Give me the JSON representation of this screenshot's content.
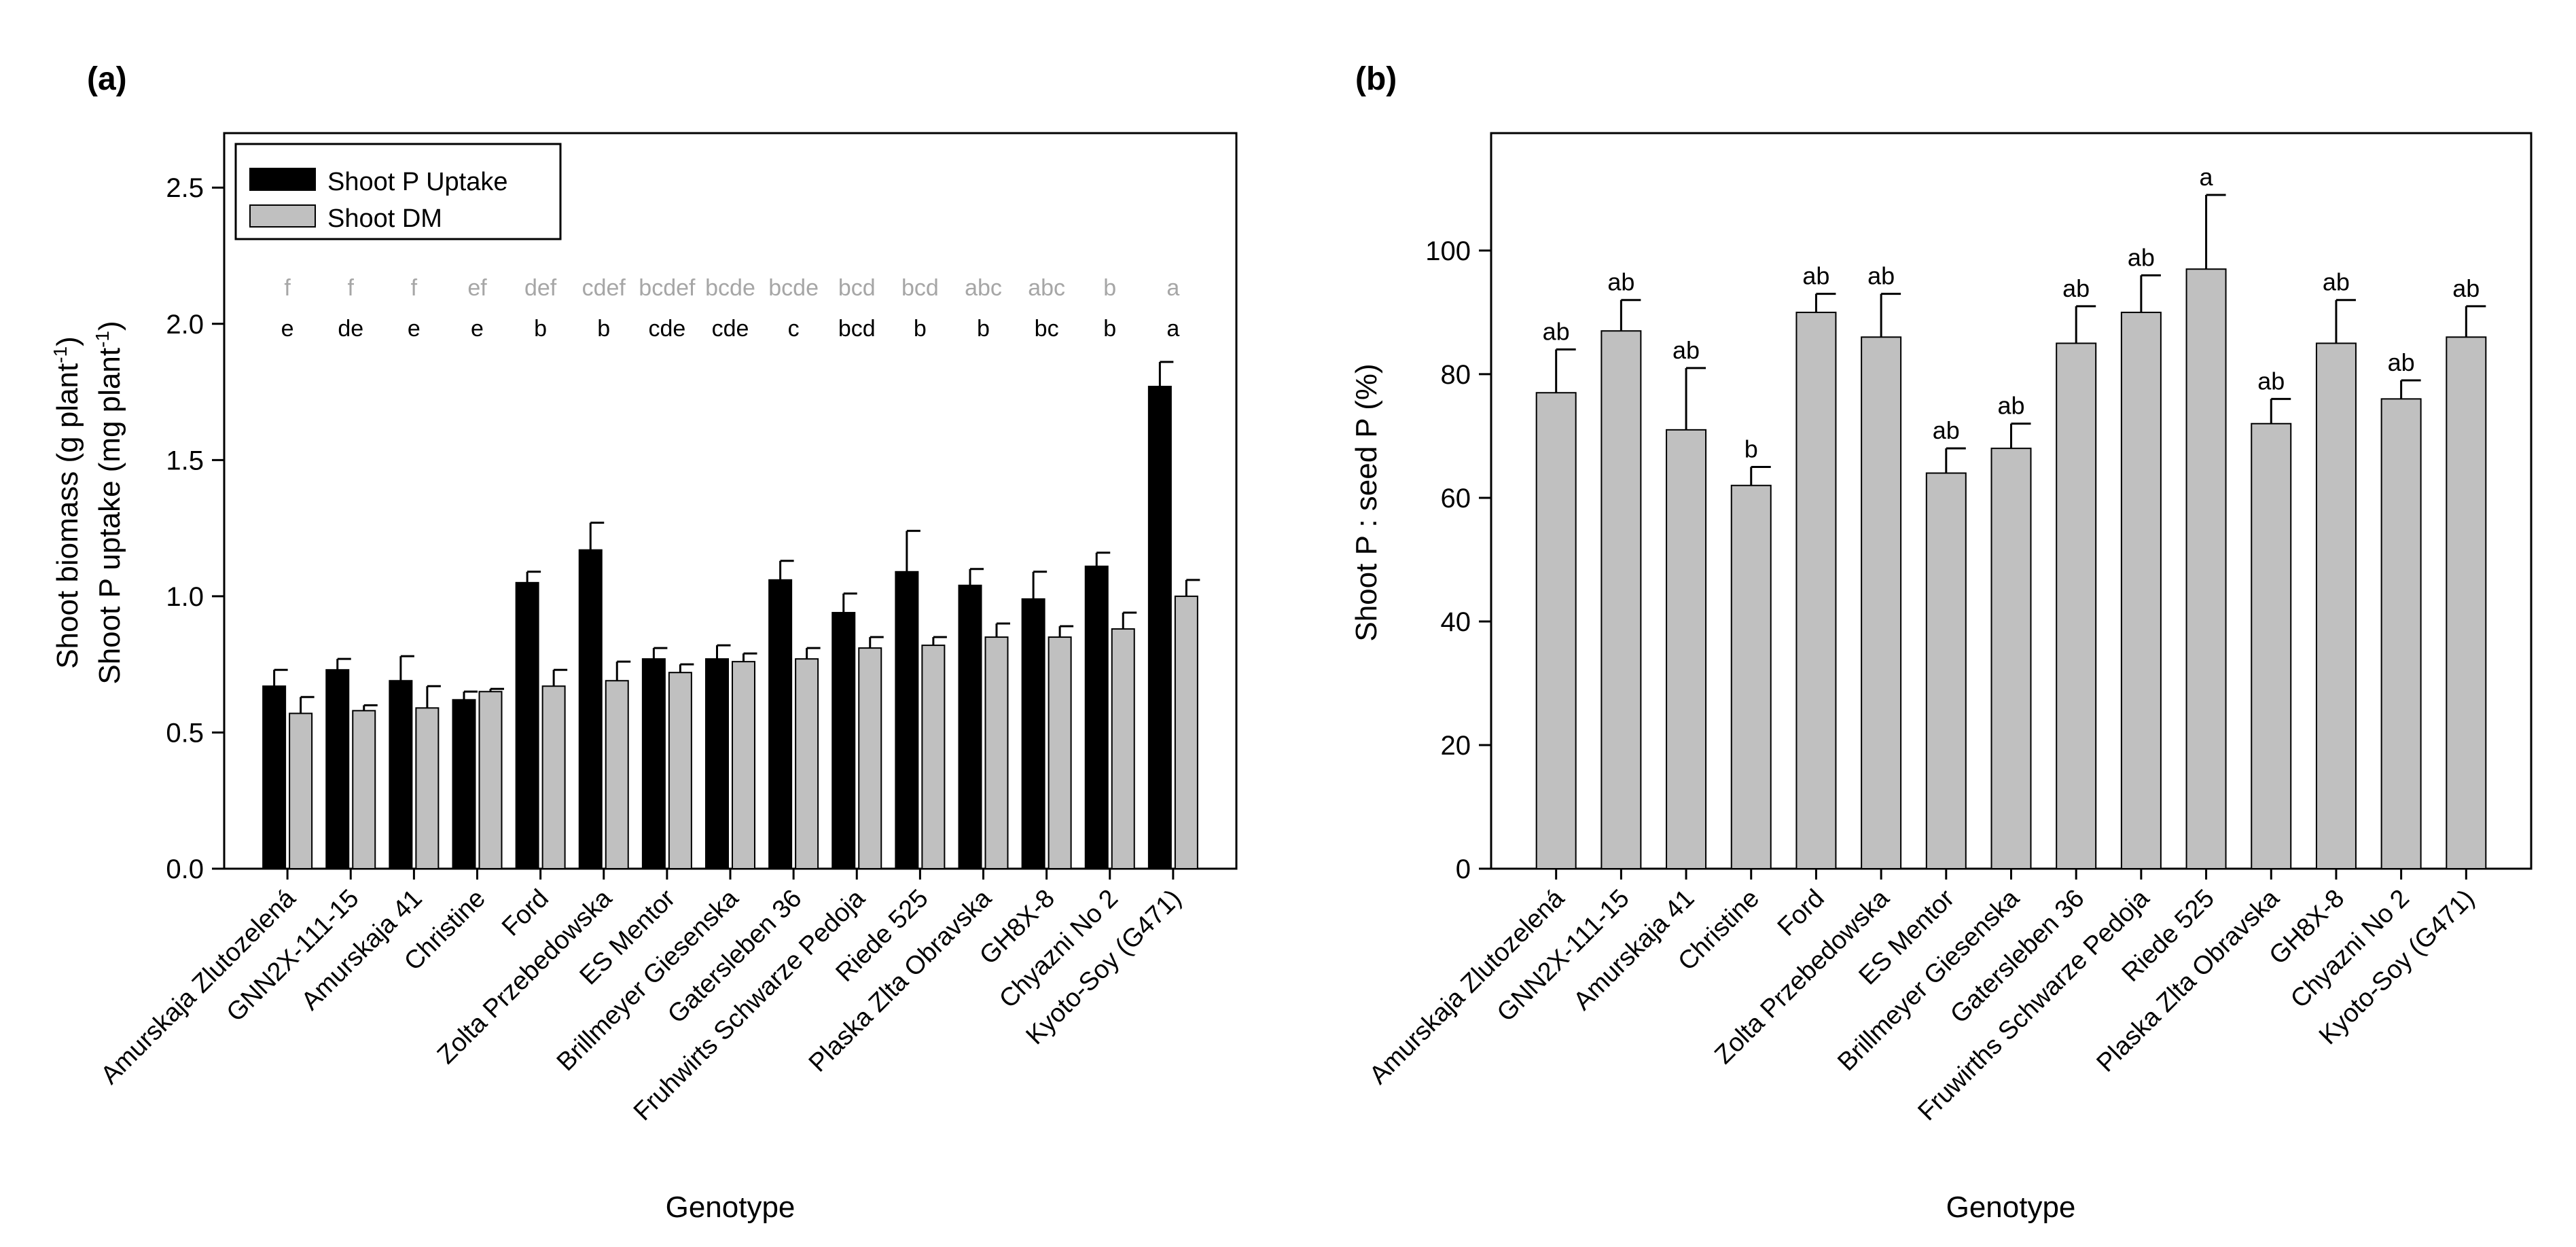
{
  "figure": {
    "panel_a_label": "(a)",
    "panel_b_label": "(b)"
  },
  "colors": {
    "uptake_fill": "#000000",
    "dm_fill": "#c0c0c0",
    "letters_uptake": "#000000",
    "letters_dm": "#a6a6a6"
  },
  "chart_data": [
    {
      "type": "bar",
      "panel": "a",
      "xlabel": "Genotype",
      "ylabel_line1": "Shoot biomass (g plant",
      "ylabel_line1_sup": "-1",
      "ylabel_line1_end": ")",
      "ylabel_line2": "Shoot P uptake (mg plant",
      "ylabel_line2_sup": "-1",
      "ylabel_line2_end": ")",
      "ylim": [
        0,
        2.7
      ],
      "yticks": [
        0.0,
        0.5,
        1.0,
        1.5,
        2.0,
        2.5
      ],
      "ytick_labels": [
        "0.0",
        "0.5",
        "1.0",
        "1.5",
        "2.0",
        "2.5"
      ],
      "legend_position": "top-left",
      "categories": [
        "Amurskaja Zlutozelená",
        "GNN2X-111-15",
        "Amurskaja 41",
        "Christine",
        "Ford",
        "Zolta Przebedowska",
        "ES Mentor",
        "Brillmeyer Giesenska",
        "Gatersleben 36",
        "Fruhwirts Schwarze Pedoja",
        "Riede 525",
        "Plaska Zlta Obravska",
        "GH8X-8",
        "Chyazni No 2",
        "Kyoto-Soy (G471)"
      ],
      "series": [
        {
          "name": "Shoot P Uptake",
          "values": [
            0.67,
            0.73,
            0.69,
            0.62,
            1.05,
            1.17,
            0.77,
            0.77,
            1.06,
            0.94,
            1.09,
            1.04,
            0.99,
            1.11,
            1.77
          ],
          "errors": [
            0.06,
            0.04,
            0.09,
            0.03,
            0.04,
            0.1,
            0.04,
            0.05,
            0.07,
            0.07,
            0.15,
            0.06,
            0.1,
            0.05,
            0.09
          ],
          "letters": [
            "e",
            "de",
            "e",
            "e",
            "b",
            "b",
            "cde",
            "cde",
            "c",
            "bcd",
            "b",
            "b",
            "bc",
            "b",
            "a"
          ]
        },
        {
          "name": "Shoot DM",
          "values": [
            0.57,
            0.58,
            0.59,
            0.65,
            0.67,
            0.69,
            0.72,
            0.76,
            0.77,
            0.81,
            0.82,
            0.85,
            0.85,
            0.88,
            1.0
          ],
          "errors": [
            0.06,
            0.02,
            0.08,
            0.01,
            0.06,
            0.07,
            0.03,
            0.03,
            0.04,
            0.04,
            0.03,
            0.05,
            0.04,
            0.06,
            0.06
          ],
          "letters": [
            "f",
            "f",
            "f",
            "ef",
            "def",
            "cdef",
            "bcdef",
            "bcde",
            "bcde",
            "bcd",
            "bcd",
            "abc",
            "abc",
            "b",
            "a"
          ]
        }
      ]
    },
    {
      "type": "bar",
      "panel": "b",
      "xlabel": "Genotype",
      "ylabel": "Shoot P : seed P (%)",
      "ylim": [
        0,
        119
      ],
      "yticks": [
        0,
        20,
        40,
        60,
        80,
        100
      ],
      "ytick_labels": [
        "0",
        "20",
        "40",
        "60",
        "80",
        "100"
      ],
      "categories": [
        "Amurskaja Zlutozelená",
        "GNN2X-111-15",
        "Amurskaja 41",
        "Christine",
        "Ford",
        "Zolta Przebedowska",
        "ES Mentor",
        "Brillmeyer Giesenska",
        "Gatersleben 36",
        "Fruwirths Schwarze Pedoja",
        "Riede 525",
        "Plaska Zlta Obravska",
        "GH8X-8",
        "Chyazni No 2",
        "Kyoto-Soy (G471)"
      ],
      "series": [
        {
          "name": "Shoot P : seed P",
          "values": [
            77,
            87,
            71,
            62,
            90,
            86,
            64,
            68,
            85,
            90,
            97,
            72,
            85,
            76,
            86
          ],
          "errors": [
            7,
            5,
            10,
            3,
            3,
            7,
            4,
            4,
            6,
            6,
            12,
            4,
            7,
            3,
            5
          ],
          "letters": [
            "ab",
            "ab",
            "ab",
            "b",
            "ab",
            "ab",
            "ab",
            "ab",
            "ab",
            "ab",
            "a",
            "ab",
            "ab",
            "ab",
            "ab"
          ]
        }
      ]
    }
  ]
}
